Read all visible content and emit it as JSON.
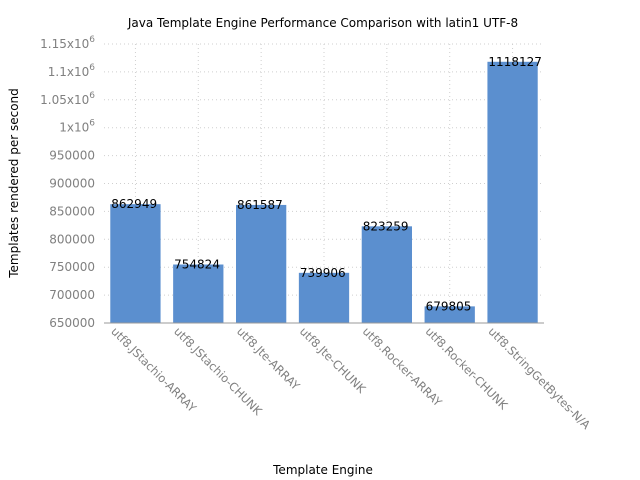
{
  "chart_data": {
    "type": "bar",
    "title": "Java Template Engine Performance Comparison with latin1 UTF-8",
    "xlabel": "Template Engine",
    "ylabel": "Templates rendered per second",
    "categories": [
      "utf8.JStachio-ARRAY",
      "utf8.JStachio-CHUNK",
      "utf8.Jte-ARRAY",
      "utf8.Jte-CHUNK",
      "utf8.Rocker-ARRAY",
      "utf8.Rocker-CHUNK",
      "utf8.StringGetBytes-N/A"
    ],
    "values": [
      862949,
      754824,
      861587,
      739906,
      823259,
      679805,
      1118127
    ],
    "value_labels": [
      "862949",
      "754824",
      "861587",
      "739906",
      "823259",
      "679805",
      "1118127"
    ],
    "ylim": [
      650000,
      1150000
    ],
    "yticks": [
      650000,
      700000,
      750000,
      800000,
      850000,
      900000,
      950000,
      1000000,
      1050000,
      1100000,
      1150000
    ],
    "ytick_labels": [
      {
        "base": "650000",
        "exp": ""
      },
      {
        "base": "700000",
        "exp": ""
      },
      {
        "base": "750000",
        "exp": ""
      },
      {
        "base": "800000",
        "exp": ""
      },
      {
        "base": "850000",
        "exp": ""
      },
      {
        "base": "900000",
        "exp": ""
      },
      {
        "base": "950000",
        "exp": ""
      },
      {
        "base": "1x10",
        "exp": "6"
      },
      {
        "base": "1.05x10",
        "exp": "6"
      },
      {
        "base": "1.1x10",
        "exp": "6"
      },
      {
        "base": "1.15x10",
        "exp": "6"
      }
    ],
    "grid": true,
    "bar_color": "#5b8fcf"
  }
}
